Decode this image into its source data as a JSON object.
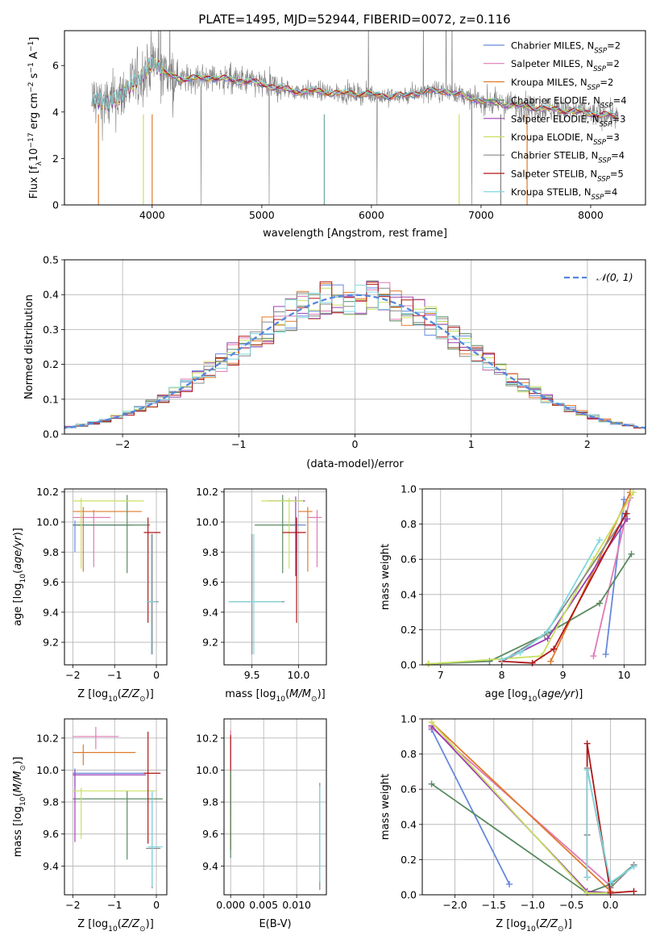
{
  "figure_title": "PLATE=1495, MJD=52944, FIBERID=0072, z=0.116",
  "colors": {
    "Chabrier MILES": "#6688dd",
    "Salpeter MILES": "#e07ab4",
    "Kroupa MILES": "#e07a2a",
    "Chabrier ELODIE": "#5a8a60",
    "Salpeter ELODIE": "#9a40b0",
    "Kroupa ELODIE": "#c8e060",
    "Chabrier STELIB": "#888888",
    "Salpeter STELIB": "#b01818",
    "Kroupa STELIB": "#80d8e0"
  },
  "chart_data": [
    {
      "id": "spectrum",
      "type": "line",
      "title": "PLATE=1495, MJD=52944, FIBERID=0072, z=0.116",
      "xlabel": "wavelength [Angstrom, rest frame]",
      "ylabel": "Flux [fλ10⁻¹⁷ erg cm⁻² s⁻¹ A⁻¹]",
      "xlim": [
        3200,
        8500
      ],
      "ylim": [
        0,
        7.5
      ],
      "xticks": [
        4000,
        5000,
        6000,
        7000,
        8000
      ],
      "yticks": [
        0,
        2,
        4,
        6
      ],
      "legend_position": "top-right",
      "legend": [
        {
          "main": "Chabrier MILES, N",
          "sub": "SSP",
          "tail": "=2",
          "color": "#6688dd"
        },
        {
          "main": "Salpeter MILES, N",
          "sub": "SSP",
          "tail": "=2",
          "color": "#e07ab4"
        },
        {
          "main": "Kroupa MILES, N",
          "sub": "SSP",
          "tail": "=2",
          "color": "#e07a2a"
        },
        {
          "main": "Chabrier ELODIE, N",
          "sub": "SSP",
          "tail": "=4",
          "color": "#5a8a60"
        },
        {
          "main": "Salpeter ELODIE, N",
          "sub": "SSP",
          "tail": "=3",
          "color": "#9a40b0"
        },
        {
          "main": "Kroupa ELODIE, N",
          "sub": "SSP",
          "tail": "=3",
          "color": "#c8e060"
        },
        {
          "main": "Chabrier STELIB, N",
          "sub": "SSP",
          "tail": "=4",
          "color": "#888888"
        },
        {
          "main": "Salpeter STELIB, N",
          "sub": "SSP",
          "tail": "=5",
          "color": "#b01818"
        },
        {
          "main": "Kroupa STELIB, N",
          "sub": "SSP",
          "tail": "=4",
          "color": "#80d8e0"
        }
      ],
      "continuum": {
        "x": [
          3450,
          3600,
          3750,
          3900,
          4000,
          4100,
          4300,
          4500,
          4700,
          4900,
          5100,
          5300,
          5500,
          5700,
          5900,
          6100,
          6300,
          6500,
          6700,
          6900,
          7100,
          7300,
          7500,
          7700,
          7900,
          8100,
          8250
        ],
        "y": [
          4.6,
          4.3,
          4.9,
          5.5,
          6.2,
          5.7,
          5.4,
          5.5,
          5.4,
          5.3,
          5.1,
          4.9,
          4.9,
          4.8,
          4.8,
          4.7,
          4.7,
          4.9,
          4.9,
          4.6,
          4.4,
          4.3,
          4.2,
          4.1,
          4.0,
          3.9,
          3.8
        ]
      }
    },
    {
      "id": "residual_hist",
      "type": "area",
      "xlabel": "(data-model)/error",
      "ylabel": "Normed distribution",
      "xlim": [
        -2.5,
        2.5
      ],
      "ylim": [
        0,
        0.5
      ],
      "xticks": [
        -2,
        -1,
        0,
        1,
        2
      ],
      "yticks": [
        0.0,
        0.1,
        0.2,
        0.3,
        0.4,
        0.5
      ],
      "legend": {
        "label": "𝒩(0, 1)",
        "color": "#5588dd",
        "position": "top-right"
      },
      "bin_width": 0.1
    },
    {
      "id": "age_vs_z",
      "type": "scatter",
      "xlabel": "Z [log10(Z/Z⊙)]",
      "ylabel": "age [log10(age/yr)]",
      "xlim": [
        -2.2,
        0.25
      ],
      "ylim": [
        9.05,
        10.22
      ],
      "xticks": [
        -2,
        -1,
        0
      ],
      "yticks": [
        9.2,
        9.4,
        9.6,
        9.8,
        10.0,
        10.2
      ],
      "points": [
        {
          "series": "Chabrier MILES",
          "x": -1.95,
          "y": 9.98,
          "xerr": [
            0.05,
            1.35
          ],
          "yerr": [
            0.18,
            0.03
          ]
        },
        {
          "series": "Salpeter MILES",
          "x": -1.5,
          "y": 10.03,
          "xerr": [
            0.5,
            0.4
          ],
          "yerr": [
            0.33,
            0.05
          ]
        },
        {
          "series": "Kroupa MILES",
          "x": -1.75,
          "y": 10.07,
          "xerr": [
            0.25,
            1.4
          ],
          "yerr": [
            0.4,
            0.03
          ]
        },
        {
          "series": "Chabrier ELODIE",
          "x": -0.7,
          "y": 9.98,
          "xerr": [
            1.3,
            0.55
          ],
          "yerr": [
            0.32,
            0.2
          ]
        },
        {
          "series": "Salpeter ELODIE",
          "x": -0.1,
          "y": 9.47,
          "xerr": [
            0.1,
            0.12
          ],
          "yerr": [
            0.35,
            0.45
          ]
        },
        {
          "series": "Kroupa ELODIE",
          "x": -1.8,
          "y": 10.14,
          "xerr": [
            0.2,
            1.5
          ],
          "yerr": [
            0.45,
            0.02
          ]
        },
        {
          "series": "Chabrier STELIB",
          "x": -0.1,
          "y": 9.47,
          "xerr": [
            0.1,
            0.15
          ],
          "yerr": [
            0.35,
            0.45
          ]
        },
        {
          "series": "Salpeter STELIB",
          "x": -0.2,
          "y": 9.93,
          "xerr": [
            0.1,
            0.3
          ],
          "yerr": [
            0.6,
            0.1
          ]
        },
        {
          "series": "Kroupa STELIB",
          "x": -0.12,
          "y": 9.47,
          "xerr": [
            0.12,
            0.12
          ],
          "yerr": [
            0.35,
            0.45
          ]
        }
      ]
    },
    {
      "id": "age_vs_mass",
      "type": "scatter",
      "xlabel": "mass [log10(M/M⊙)]",
      "ylabel": "",
      "xlim": [
        9.2,
        10.3
      ],
      "ylim": [
        9.05,
        10.22
      ],
      "xticks": [
        9.5,
        10.0
      ],
      "yticks": [
        9.2,
        9.4,
        9.6,
        9.8,
        10.0,
        10.2
      ],
      "points": [
        {
          "series": "Chabrier MILES",
          "x": 9.98,
          "y": 9.98,
          "xerr": [
            0.1,
            0.1
          ],
          "yerr": [
            0.18,
            0.03
          ]
        },
        {
          "series": "Salpeter MILES",
          "x": 10.2,
          "y": 10.03,
          "xerr": [
            0.1,
            0.05
          ],
          "yerr": [
            0.33,
            0.05
          ]
        },
        {
          "series": "Kroupa MILES",
          "x": 10.1,
          "y": 10.07,
          "xerr": [
            0.1,
            0.05
          ],
          "yerr": [
            0.4,
            0.03
          ]
        },
        {
          "series": "Chabrier ELODIE",
          "x": 9.83,
          "y": 9.98,
          "xerr": [
            0.3,
            0.15
          ],
          "yerr": [
            0.32,
            0.2
          ]
        },
        {
          "series": "Salpeter ELODIE",
          "x": 9.97,
          "y": 10.14,
          "xerr": [
            0.3,
            0.1
          ],
          "yerr": [
            0.5,
            0.03
          ]
        },
        {
          "series": "Kroupa ELODIE",
          "x": 9.9,
          "y": 10.14,
          "xerr": [
            0.3,
            0.15
          ],
          "yerr": [
            0.45,
            0.02
          ]
        },
        {
          "series": "Chabrier STELIB",
          "x": 9.5,
          "y": 9.47,
          "xerr": [
            0.25,
            0.35
          ],
          "yerr": [
            0.35,
            0.45
          ]
        },
        {
          "series": "Salpeter STELIB",
          "x": 9.98,
          "y": 9.93,
          "xerr": [
            0.15,
            0.1
          ],
          "yerr": [
            0.6,
            0.1
          ]
        },
        {
          "series": "Kroupa STELIB",
          "x": 9.52,
          "y": 9.47,
          "xerr": [
            0.27,
            0.3
          ],
          "yerr": [
            0.35,
            0.45
          ]
        }
      ]
    },
    {
      "id": "massweight_vs_age",
      "type": "line",
      "xlabel": "age [log10(age/yr)]",
      "ylabel": "mass weight",
      "xlim": [
        6.7,
        10.35
      ],
      "ylim": [
        0,
        1
      ],
      "xticks": [
        7,
        8,
        9,
        10
      ],
      "yticks": [
        0.0,
        0.2,
        0.4,
        0.6,
        0.8,
        1.0
      ],
      "series": [
        {
          "name": "Chabrier MILES",
          "x": [
            9.7,
            10.0
          ],
          "y": [
            0.06,
            0.94
          ]
        },
        {
          "name": "Salpeter MILES",
          "x": [
            9.5,
            10.1
          ],
          "y": [
            0.05,
            0.95
          ]
        },
        {
          "name": "Kroupa MILES",
          "x": [
            8.8,
            10.1
          ],
          "y": [
            0.02,
            0.98
          ]
        },
        {
          "name": "Chabrier ELODIE",
          "x": [
            6.8,
            7.8,
            8.75,
            9.6,
            10.12
          ],
          "y": [
            0.005,
            0.02,
            0.18,
            0.35,
            0.63
          ]
        },
        {
          "name": "Salpeter ELODIE",
          "x": [
            8.0,
            8.75,
            10.05
          ],
          "y": [
            0.02,
            0.15,
            0.83
          ]
        },
        {
          "name": "Kroupa ELODIE",
          "x": [
            6.8,
            8.65,
            9.5,
            10.15
          ],
          "y": [
            0.005,
            0.05,
            0.6,
            0.98
          ]
        },
        {
          "name": "Chabrier STELIB",
          "x": [
            8.0,
            8.7,
            10.05
          ],
          "y": [
            0.02,
            0.17,
            0.86
          ]
        },
        {
          "name": "Salpeter STELIB",
          "x": [
            8.0,
            8.5,
            8.85,
            10.03
          ],
          "y": [
            0.02,
            0.01,
            0.09,
            0.86
          ]
        },
        {
          "name": "Kroupa STELIB",
          "x": [
            8.0,
            8.3,
            8.75,
            9.6
          ],
          "y": [
            0.03,
            0.07,
            0.19,
            0.71
          ]
        }
      ]
    },
    {
      "id": "mass_vs_z",
      "type": "scatter",
      "xlabel": "Z [log10(Z/Z⊙)]",
      "ylabel": "mass [log10(M/M⊙)]",
      "xlim": [
        -2.2,
        0.25
      ],
      "ylim": [
        9.22,
        10.32
      ],
      "xticks": [
        -2,
        -1,
        0
      ],
      "yticks": [
        9.4,
        9.6,
        9.8,
        10.0,
        10.2
      ],
      "points": [
        {
          "series": "Chabrier MILES",
          "x": -1.95,
          "y": 9.98,
          "xerr": [
            0.05,
            1.7
          ],
          "yerr": [
            0.08,
            0.03
          ]
        },
        {
          "series": "Salpeter MILES",
          "x": -1.45,
          "y": 10.21,
          "xerr": [
            0.55,
            0.55
          ],
          "yerr": [
            0.08,
            0.06
          ]
        },
        {
          "series": "Kroupa MILES",
          "x": -1.75,
          "y": 10.11,
          "xerr": [
            0.25,
            1.25
          ],
          "yerr": [
            0.08,
            0.05
          ]
        },
        {
          "series": "Chabrier ELODIE",
          "x": -0.7,
          "y": 9.82,
          "xerr": [
            1.3,
            0.85
          ],
          "yerr": [
            0.38,
            0.05
          ]
        },
        {
          "series": "Salpeter ELODIE",
          "x": -1.95,
          "y": 9.97,
          "xerr": [
            0.05,
            1.7
          ],
          "yerr": [
            0.42,
            0.03
          ]
        },
        {
          "series": "Kroupa ELODIE",
          "x": -1.8,
          "y": 9.87,
          "xerr": [
            0.2,
            1.8
          ],
          "yerr": [
            0.3,
            0.02
          ]
        },
        {
          "series": "Chabrier STELIB",
          "x": -0.1,
          "y": 9.51,
          "xerr": [
            0.15,
            0.2
          ],
          "yerr": [
            0.25,
            0.35
          ]
        },
        {
          "series": "Salpeter STELIB",
          "x": -0.2,
          "y": 9.98,
          "xerr": [
            0.1,
            0.3
          ],
          "yerr": [
            0.44,
            0.26
          ]
        },
        {
          "series": "Kroupa STELIB",
          "x": -0.1,
          "y": 9.52,
          "xerr": [
            0.1,
            0.25
          ],
          "yerr": [
            0.25,
            0.35
          ]
        }
      ]
    },
    {
      "id": "mass_vs_ebv",
      "type": "scatter",
      "xlabel": "E(B-V)",
      "ylabel": "",
      "xlim": [
        -0.001,
        0.0145
      ],
      "ylim": [
        9.22,
        10.32
      ],
      "xticks": [
        0.0,
        0.005,
        0.01
      ],
      "xtick_labels": [
        "0.000",
        "0.005",
        "0.010"
      ],
      "yticks": [
        9.4,
        9.6,
        9.8,
        10.0,
        10.2
      ],
      "points": [
        {
          "series": "Salpeter MILES",
          "x": 0.0,
          "y": 10.0,
          "xerr": [
            0,
            0
          ],
          "yerr": [
            0.3,
            0.25
          ]
        },
        {
          "series": "Salpeter STELIB",
          "x": 0.0,
          "y": 9.9,
          "xerr": [
            0,
            0
          ],
          "yerr": [
            0.4,
            0.32
          ]
        },
        {
          "series": "Chabrier ELODIE",
          "x": 0.0,
          "y": 9.7,
          "xerr": [
            0,
            0
          ],
          "yerr": [
            0.25,
            0.3
          ]
        },
        {
          "series": "Chabrier STELIB",
          "x": 0.0135,
          "y": 9.55,
          "xerr": [
            0,
            0
          ],
          "yerr": [
            0.3,
            0.37
          ]
        },
        {
          "series": "Kroupa STELIB",
          "x": 0.0135,
          "y": 9.6,
          "xerr": [
            0,
            0
          ],
          "yerr": [
            0.3,
            0.3
          ]
        }
      ]
    },
    {
      "id": "massweight_vs_z",
      "type": "line",
      "xlabel": "Z [log10(Z/Z⊙)]",
      "ylabel": "mass weight",
      "xlim": [
        -2.42,
        0.45
      ],
      "ylim": [
        0,
        1
      ],
      "xticks": [
        -2.0,
        -1.5,
        -1.0,
        -0.5,
        0.0
      ],
      "yticks": [
        0.0,
        0.2,
        0.4,
        0.6,
        0.8,
        1.0
      ],
      "series": [
        {
          "name": "Chabrier MILES",
          "x": [
            -2.3,
            -1.3
          ],
          "y": [
            0.94,
            0.06
          ]
        },
        {
          "name": "Salpeter MILES",
          "x": [
            -2.3,
            0.0
          ],
          "y": [
            0.95,
            0.05
          ]
        },
        {
          "name": "Kroupa MILES",
          "x": [
            -2.3,
            0.0
          ],
          "y": [
            0.98,
            0.02
          ]
        },
        {
          "name": "Chabrier ELODIE",
          "x": [
            -2.3,
            -0.3,
            0.0,
            0.3
          ],
          "y": [
            0.63,
            0.01,
            0.06,
            0.17
          ]
        },
        {
          "name": "Salpeter ELODIE",
          "x": [
            -2.3,
            -0.3,
            0.0
          ],
          "y": [
            0.96,
            0.02,
            0.01
          ]
        },
        {
          "name": "Kroupa ELODIE",
          "x": [
            -2.3,
            -0.3,
            0.0
          ],
          "y": [
            0.98,
            0.01,
            0.01
          ]
        },
        {
          "name": "Chabrier STELIB",
          "x": [
            -0.3,
            -0.3,
            0.0,
            0.3
          ],
          "y": [
            0.34,
            0.72,
            0.04,
            0.17
          ]
        },
        {
          "name": "Salpeter STELIB",
          "x": [
            -0.3,
            -0.3,
            0.0,
            0.3
          ],
          "y": [
            0.1,
            0.86,
            0.01,
            0.02
          ]
        },
        {
          "name": "Kroupa STELIB",
          "x": [
            -0.3,
            -0.3,
            0.0,
            0.3
          ],
          "y": [
            0.1,
            0.71,
            0.07,
            0.16
          ]
        }
      ]
    }
  ]
}
